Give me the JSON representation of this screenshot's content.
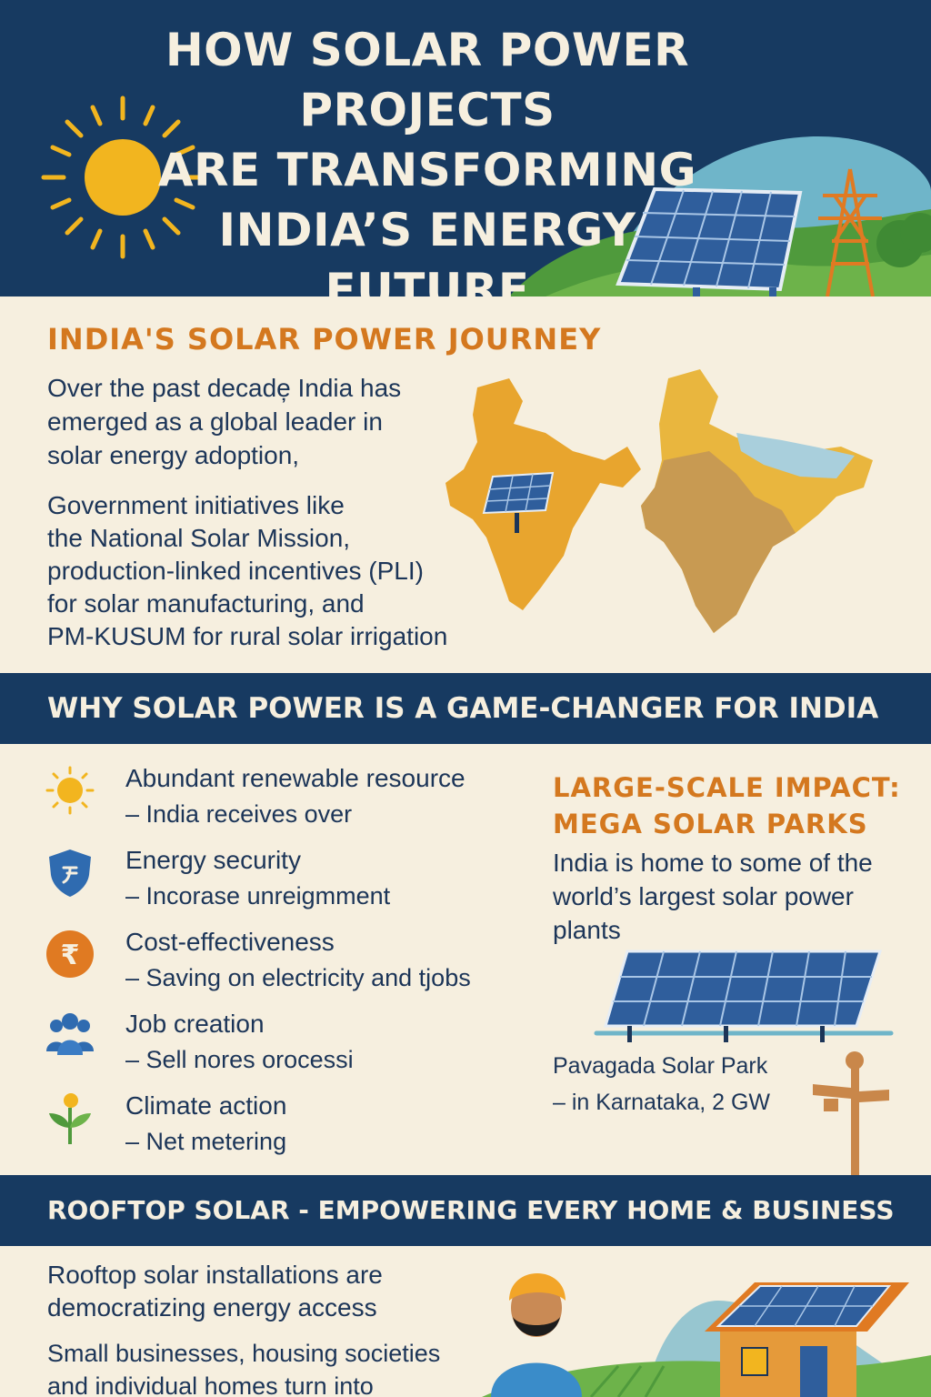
{
  "header": {
    "title_lines": [
      "How Solar Power Projects",
      "Are Transforming",
      "India’s Energy",
      "Future"
    ]
  },
  "journey": {
    "heading": "India's Solar Power Journey",
    "para1_lines": [
      "Over the past decade̦ India has",
      "emerged as a global leader in",
      "solar energy adoption,"
    ],
    "para2_lines": [
      "Government initiatives like",
      "the National Solar Mission,",
      "production-linked incentives (PLI)",
      "for solar manufacturing, and",
      "PM-KUSUM for rural solar irrigation"
    ]
  },
  "why": {
    "band_title": "Why Solar Power is a Game-Changer for India",
    "benefits": [
      {
        "icon": "sun-icon",
        "title": "Abundant renewable resource",
        "desc": "– India receives over"
      },
      {
        "icon": "shield-icon",
        "title": "Energy security",
        "desc": "– Incorase unreigmment"
      },
      {
        "icon": "rupee-icon",
        "title": "Cost-effectiveness",
        "desc": "– Saving on electricity and tjobs"
      },
      {
        "icon": "people-icon",
        "title": "Job creation",
        "desc": "– Sell nores orocessi"
      },
      {
        "icon": "plant-icon",
        "title": "Climate action",
        "desc": "– Net metering"
      }
    ]
  },
  "mega": {
    "heading_lines": [
      "Large-Scale Impact:",
      "Mega Solar Parks"
    ],
    "intro_lines": [
      "India is home to some of the",
      "world’s largest solar power",
      "plants"
    ],
    "park_lines": [
      "Pavagada Solar Park",
      "– in Karnataka, 2 GW"
    ]
  },
  "rooftop": {
    "band_title": "Rooftop Solar - Empowering Every Home & Business",
    "para1_lines": [
      "Rooftop solar installations are",
      "democratizing energy access"
    ],
    "para2_lines": [
      "Small businesses, housing societies",
      "and individual homes turn into"
    ]
  },
  "colors": {
    "navy": "#173a61",
    "cream": "#f6efdf",
    "orange": "#d4781f",
    "sun": "#f2b51f",
    "panel_blue": "#2f5e9c",
    "text": "#1c3558"
  }
}
